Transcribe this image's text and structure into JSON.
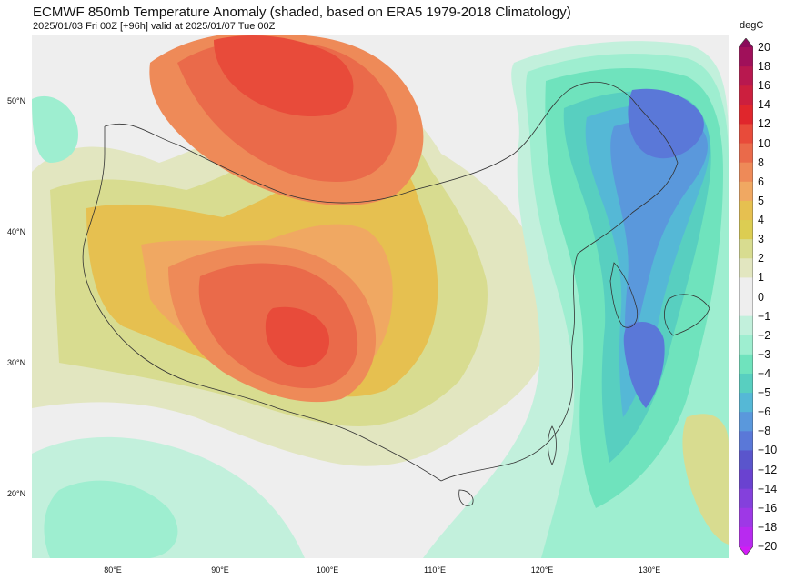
{
  "title": "ECMWF 850mb Temperature Anomaly (shaded, based on ERA5 1979-2018 Climatology)",
  "subtitle": "2025/01/03 Fri 00Z [+96h] valid at 2025/01/07 Tue 00Z",
  "map": {
    "projection": "equirectangular",
    "lon_range": [
      72.5,
      137.5
    ],
    "lat_range": [
      15,
      55
    ],
    "lat_ticks": [
      {
        "value": 50,
        "label": "50°N"
      },
      {
        "value": 40,
        "label": "40°N"
      },
      {
        "value": 30,
        "label": "30°N"
      },
      {
        "value": 20,
        "label": "20°N"
      }
    ],
    "lon_ticks": [
      {
        "value": 80,
        "label": "80°E"
      },
      {
        "value": 90,
        "label": "90°E"
      },
      {
        "value": 100,
        "label": "100°E"
      },
      {
        "value": 110,
        "label": "110°E"
      },
      {
        "value": 120,
        "label": "120°E"
      },
      {
        "value": 130,
        "label": "130°E"
      }
    ]
  },
  "colorbar": {
    "unit": "degC",
    "levels": [
      {
        "label": "20",
        "color": "#8a0a5a"
      },
      {
        "label": "18",
        "color": "#a0105a"
      },
      {
        "label": "16",
        "color": "#b8184f"
      },
      {
        "label": "14",
        "color": "#cc1f3e"
      },
      {
        "label": "12",
        "color": "#e0262c"
      },
      {
        "label": "10",
        "color": "#e84b3a"
      },
      {
        "label": "8",
        "color": "#ea6a4a"
      },
      {
        "label": "6",
        "color": "#ee8a58"
      },
      {
        "label": "5",
        "color": "#f0a862"
      },
      {
        "label": "4",
        "color": "#e6c050"
      },
      {
        "label": "3",
        "color": "#dccd52"
      },
      {
        "label": "2",
        "color": "#d8dc90"
      },
      {
        "label": "1",
        "color": "#e2e6c0"
      },
      {
        "label": "0",
        "color": "#eeeeee"
      },
      {
        "label": "−1",
        "color": "#c2f0dc"
      },
      {
        "label": "−2",
        "color": "#9eeed0"
      },
      {
        "label": "−3",
        "color": "#6fe3bd"
      },
      {
        "label": "−4",
        "color": "#58cfc0"
      },
      {
        "label": "−5",
        "color": "#55b8d6"
      },
      {
        "label": "−6",
        "color": "#5a98dc"
      },
      {
        "label": "−8",
        "color": "#5a78d8"
      },
      {
        "label": "−10",
        "color": "#5a55cc"
      },
      {
        "label": "−12",
        "color": "#6a42d0"
      },
      {
        "label": "−14",
        "color": "#8440dc"
      },
      {
        "label": "−16",
        "color": "#9e38e6"
      },
      {
        "label": "−18",
        "color": "#b82af0"
      },
      {
        "label": "−20",
        "color": "#d21cf6"
      }
    ]
  },
  "anomaly_regions": [
    {
      "name": "tibetan-plateau-warm-core",
      "level": "8"
    },
    {
      "name": "mongolia-warm-core",
      "level": "8"
    },
    {
      "name": "northeast-china-cold-core",
      "level": "−8"
    },
    {
      "name": "east-china-sea-cold-core",
      "level": "−6"
    }
  ]
}
